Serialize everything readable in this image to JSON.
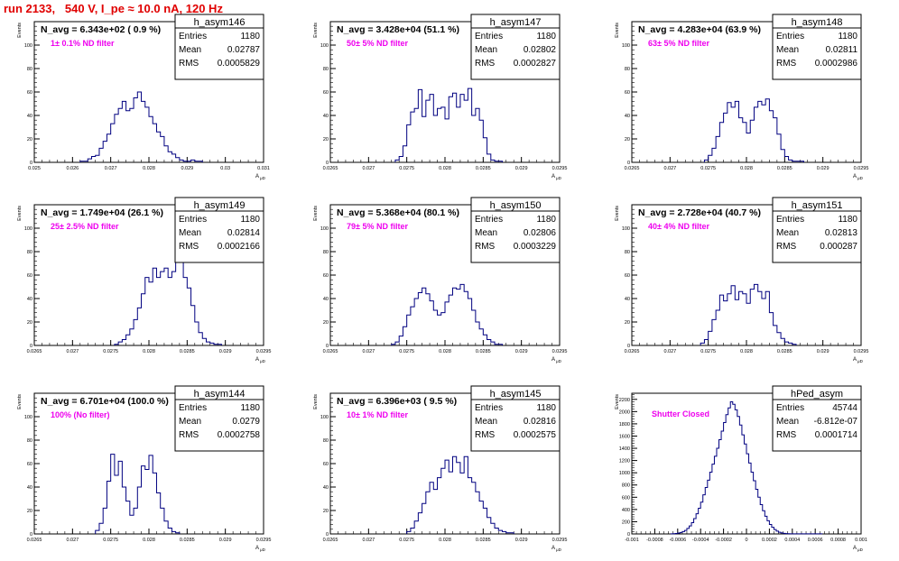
{
  "page_title": "run 2133,   540 V, I_pe ≈ 10.0 nA, 120 Hz",
  "colors": {
    "title": "#e00000",
    "annotation": "#ee00ee",
    "histogram": "#000080",
    "axis": "#000000"
  },
  "chart_data": [
    {
      "type": "histogram",
      "stat_title": "h_asym146",
      "ylabel": "Events",
      "xlabel": "A",
      "xlabel_sub": "μD",
      "header": "N_avg = 6.343e+02 ( 0.9 %)",
      "annotation": "1± 0.1% ND filter",
      "stats": {
        "entries": "1180",
        "mean": "0.02787",
        "rms": "0.0005829"
      },
      "xlim": [
        0.025,
        0.031
      ],
      "ylim": [
        0,
        120
      ],
      "xticks": [
        0.025,
        0.026,
        0.027,
        0.028,
        0.029,
        0.03,
        0.031
      ],
      "xticklabels": [
        "0.025",
        "0.026",
        "0.027",
        "0.028",
        "0.029",
        "0.03",
        "0.031"
      ],
      "yticks": [
        0,
        20,
        40,
        60,
        80,
        100
      ],
      "yticklabels": [
        "0",
        "20",
        "40",
        "60",
        "80",
        "100"
      ],
      "bin_start": 0.0262,
      "bin_width": 0.0001,
      "bin_counts": [
        1,
        1,
        3,
        5,
        6,
        12,
        18,
        24,
        33,
        41,
        46,
        52,
        44,
        46,
        55,
        60,
        52,
        47,
        39,
        33,
        26,
        22,
        14,
        9,
        7,
        4,
        2,
        1,
        1,
        2,
        1,
        1
      ]
    },
    {
      "type": "histogram",
      "stat_title": "h_asym147",
      "ylabel": "Events",
      "xlabel": "A",
      "xlabel_sub": "μD",
      "header": "N_avg = 3.428e+04 (51.1 %)",
      "annotation": "50± 5% ND filter",
      "stats": {
        "entries": "1180",
        "mean": "0.02802",
        "rms": "0.0002827"
      },
      "xlim": [
        0.0265,
        0.0295
      ],
      "ylim": [
        0,
        120
      ],
      "xticks": [
        0.0265,
        0.027,
        0.0275,
        0.028,
        0.0285,
        0.029,
        0.0295
      ],
      "xticklabels": [
        "0.0265",
        "0.027",
        "0.0275",
        "0.028",
        "0.0285",
        "0.029",
        "0.0295"
      ],
      "yticks": [
        0,
        20,
        40,
        60,
        80,
        100
      ],
      "yticklabels": [
        "0",
        "20",
        "40",
        "60",
        "80",
        "100"
      ],
      "bin_start": 0.02735,
      "bin_width": 5e-05,
      "bin_counts": [
        2,
        5,
        14,
        32,
        43,
        46,
        62,
        39,
        53,
        58,
        40,
        46,
        47,
        37,
        56,
        59,
        47,
        58,
        53,
        63,
        40,
        46,
        36,
        21,
        7,
        2,
        1,
        1
      ]
    },
    {
      "type": "histogram",
      "stat_title": "h_asym148",
      "ylabel": "Events",
      "xlabel": "A",
      "xlabel_sub": "μD",
      "header": "N_avg = 4.283e+04 (63.9 %)",
      "annotation": "63± 5% ND filter",
      "stats": {
        "entries": "1180",
        "mean": "0.02811",
        "rms": "0.0002986"
      },
      "xlim": [
        0.0265,
        0.0295
      ],
      "ylim": [
        0,
        120
      ],
      "xticks": [
        0.0265,
        0.027,
        0.0275,
        0.028,
        0.0285,
        0.029,
        0.0295
      ],
      "xticklabels": [
        "0.0265",
        "0.027",
        "0.0275",
        "0.028",
        "0.0285",
        "0.029",
        "0.0295"
      ],
      "yticks": [
        0,
        20,
        40,
        60,
        80,
        100
      ],
      "yticklabels": [
        "0",
        "20",
        "40",
        "60",
        "80",
        "100"
      ],
      "bin_start": 0.02745,
      "bin_width": 5e-05,
      "bin_counts": [
        2,
        6,
        12,
        22,
        34,
        42,
        51,
        47,
        52,
        38,
        34,
        25,
        36,
        47,
        52,
        49,
        54,
        44,
        38,
        24,
        11,
        5,
        2,
        1,
        1,
        1
      ]
    },
    {
      "type": "histogram",
      "stat_title": "h_asym149",
      "ylabel": "Events",
      "xlabel": "A",
      "xlabel_sub": "μD",
      "header": "N_avg = 1.749e+04 (26.1 %)",
      "annotation": "25± 2.5% ND filter",
      "stats": {
        "entries": "1180",
        "mean": "0.02814",
        "rms": "0.0002166"
      },
      "xlim": [
        0.0265,
        0.0295
      ],
      "ylim": [
        0,
        120
      ],
      "xticks": [
        0.0265,
        0.027,
        0.0275,
        0.028,
        0.0285,
        0.029,
        0.0295
      ],
      "xticklabels": [
        "0.0265",
        "0.027",
        "0.0275",
        "0.028",
        "0.0285",
        "0.029",
        "0.0295"
      ],
      "yticks": [
        0,
        20,
        40,
        60,
        80,
        100
      ],
      "yticklabels": [
        "0",
        "20",
        "40",
        "60",
        "80",
        "100"
      ],
      "bin_start": 0.02755,
      "bin_width": 5e-05,
      "bin_counts": [
        1,
        3,
        5,
        9,
        14,
        22,
        32,
        44,
        58,
        54,
        66,
        58,
        63,
        66,
        58,
        63,
        72,
        77,
        58,
        49,
        34,
        20,
        11,
        6,
        3,
        2,
        1,
        1
      ]
    },
    {
      "type": "histogram",
      "stat_title": "h_asym150",
      "ylabel": "Events",
      "xlabel": "A",
      "xlabel_sub": "μD",
      "header": "N_avg = 5.368e+04 (80.1 %)",
      "annotation": "79± 5% ND filter",
      "stats": {
        "entries": "1180",
        "mean": "0.02806",
        "rms": "0.0003229"
      },
      "xlim": [
        0.0265,
        0.0295
      ],
      "ylim": [
        0,
        120
      ],
      "xticks": [
        0.0265,
        0.027,
        0.0275,
        0.028,
        0.0285,
        0.029,
        0.0295
      ],
      "xticklabels": [
        "0.0265",
        "0.027",
        "0.0275",
        "0.028",
        "0.0285",
        "0.029",
        "0.0295"
      ],
      "yticks": [
        0,
        20,
        40,
        60,
        80,
        100
      ],
      "yticklabels": [
        "0",
        "20",
        "40",
        "60",
        "80",
        "100"
      ],
      "bin_start": 0.0273,
      "bin_width": 5e-05,
      "bin_counts": [
        1,
        3,
        8,
        16,
        26,
        33,
        40,
        45,
        49,
        44,
        38,
        30,
        26,
        28,
        37,
        43,
        49,
        48,
        52,
        46,
        40,
        30,
        20,
        14,
        9,
        5,
        3,
        1,
        1
      ]
    },
    {
      "type": "histogram",
      "stat_title": "h_asym151",
      "ylabel": "Events",
      "xlabel": "A",
      "xlabel_sub": "μD",
      "header": "N_avg = 2.728e+04 (40.7 %)",
      "annotation": "40± 4% ND filter",
      "stats": {
        "entries": "1180",
        "mean": "0.02813",
        "rms": "0.000287"
      },
      "xlim": [
        0.0265,
        0.0295
      ],
      "ylim": [
        0,
        120
      ],
      "xticks": [
        0.0265,
        0.027,
        0.0275,
        0.028,
        0.0285,
        0.029,
        0.0295
      ],
      "xticklabels": [
        "0.0265",
        "0.027",
        "0.0275",
        "0.028",
        "0.0285",
        "0.029",
        "0.0295"
      ],
      "yticks": [
        0,
        20,
        40,
        60,
        80,
        100
      ],
      "yticklabels": [
        "0",
        "20",
        "40",
        "60",
        "80",
        "100"
      ],
      "bin_start": 0.0274,
      "bin_width": 5e-05,
      "bin_counts": [
        2,
        5,
        12,
        22,
        30,
        43,
        38,
        44,
        51,
        39,
        46,
        44,
        36,
        48,
        52,
        46,
        40,
        46,
        28,
        17,
        11,
        6,
        3,
        2,
        1
      ]
    },
    {
      "type": "histogram",
      "stat_title": "h_asym144",
      "ylabel": "Events",
      "xlabel": "A",
      "xlabel_sub": "μD",
      "header": "N_avg = 6.701e+04 (100.0 %)",
      "annotation": "100% (No filter)",
      "stats": {
        "entries": "1180",
        "mean": "0.0279",
        "rms": "0.0002758"
      },
      "xlim": [
        0.0265,
        0.0295
      ],
      "ylim": [
        0,
        120
      ],
      "xticks": [
        0.0265,
        0.027,
        0.0275,
        0.028,
        0.0285,
        0.029,
        0.0295
      ],
      "xticklabels": [
        "0.0265",
        "0.027",
        "0.0275",
        "0.028",
        "0.0285",
        "0.029",
        "0.0295"
      ],
      "yticks": [
        0,
        20,
        40,
        60,
        80,
        100
      ],
      "yticklabels": [
        "0",
        "20",
        "40",
        "60",
        "80",
        "100"
      ],
      "bin_start": 0.0273,
      "bin_width": 5e-05,
      "bin_counts": [
        3,
        9,
        22,
        45,
        68,
        50,
        62,
        40,
        28,
        16,
        22,
        40,
        58,
        55,
        67,
        52,
        35,
        22,
        11,
        5,
        2,
        1
      ]
    },
    {
      "type": "histogram",
      "stat_title": "h_asym145",
      "ylabel": "Events",
      "xlabel": "A",
      "xlabel_sub": "μD",
      "header": "N_avg = 6.396e+03 ( 9.5 %)",
      "annotation": "10± 1% ND filter",
      "stats": {
        "entries": "1180",
        "mean": "0.02816",
        "rms": "0.0002575"
      },
      "xlim": [
        0.0265,
        0.0295
      ],
      "ylim": [
        0,
        120
      ],
      "xticks": [
        0.0265,
        0.027,
        0.0275,
        0.028,
        0.0285,
        0.029,
        0.0295
      ],
      "xticklabels": [
        "0.0265",
        "0.027",
        "0.0275",
        "0.028",
        "0.0285",
        "0.029",
        "0.0295"
      ],
      "yticks": [
        0,
        20,
        40,
        60,
        80,
        100
      ],
      "yticklabels": [
        "0",
        "20",
        "40",
        "60",
        "80",
        "100"
      ],
      "bin_start": 0.0275,
      "bin_width": 5e-05,
      "bin_counts": [
        2,
        5,
        11,
        18,
        26,
        36,
        44,
        38,
        48,
        56,
        63,
        53,
        66,
        61,
        52,
        66,
        48,
        44,
        36,
        28,
        22,
        14,
        9,
        5,
        3,
        2,
        1,
        1
      ]
    },
    {
      "type": "histogram",
      "stat_title": "hPed_asym",
      "ylabel": "Events",
      "xlabel": "A",
      "xlabel_sub": "μD",
      "header": "",
      "annotation": "Shutter Closed",
      "stats": {
        "entries": "45744",
        "mean": "-6.812e-07",
        "rms": "0.0001714"
      },
      "xlim": [
        -0.001,
        0.001
      ],
      "ylim": [
        0,
        2300
      ],
      "xticks": [
        -0.001,
        -0.0008,
        -0.0006,
        -0.0004,
        -0.0002,
        0,
        0.0002,
        0.0004,
        0.0006,
        0.0008,
        0.001
      ],
      "xticklabels": [
        "-0.001",
        "-0.0008",
        "-0.0006",
        "-0.0004",
        "-0.0002",
        "0",
        "0.0002",
        "0.0004",
        "0.0006",
        "0.0008",
        "0.001"
      ],
      "yticks": [
        0,
        200,
        400,
        600,
        800,
        1000,
        1200,
        1400,
        1600,
        1800,
        2000,
        2200
      ],
      "yticklabels": [
        "0",
        "200",
        "400",
        "600",
        "800",
        "1000",
        "1200",
        "1400",
        "1600",
        "1800",
        "2000",
        "2200"
      ],
      "bin_start": -0.00066,
      "bin_width": 2e-05,
      "bin_counts": [
        2,
        4,
        8,
        14,
        24,
        38,
        58,
        90,
        130,
        185,
        250,
        330,
        420,
        520,
        640,
        760,
        880,
        1010,
        1140,
        1270,
        1400,
        1540,
        1680,
        1820,
        1950,
        2060,
        2160,
        2120,
        2030,
        1920,
        1780,
        1620,
        1470,
        1310,
        1160,
        1010,
        870,
        730,
        600,
        480,
        380,
        290,
        215,
        155,
        108,
        72,
        46,
        28,
        16,
        9,
        5,
        3,
        2,
        1,
        1,
        1,
        1,
        1,
        1,
        1,
        1,
        1,
        1,
        1,
        1,
        1
      ]
    }
  ]
}
